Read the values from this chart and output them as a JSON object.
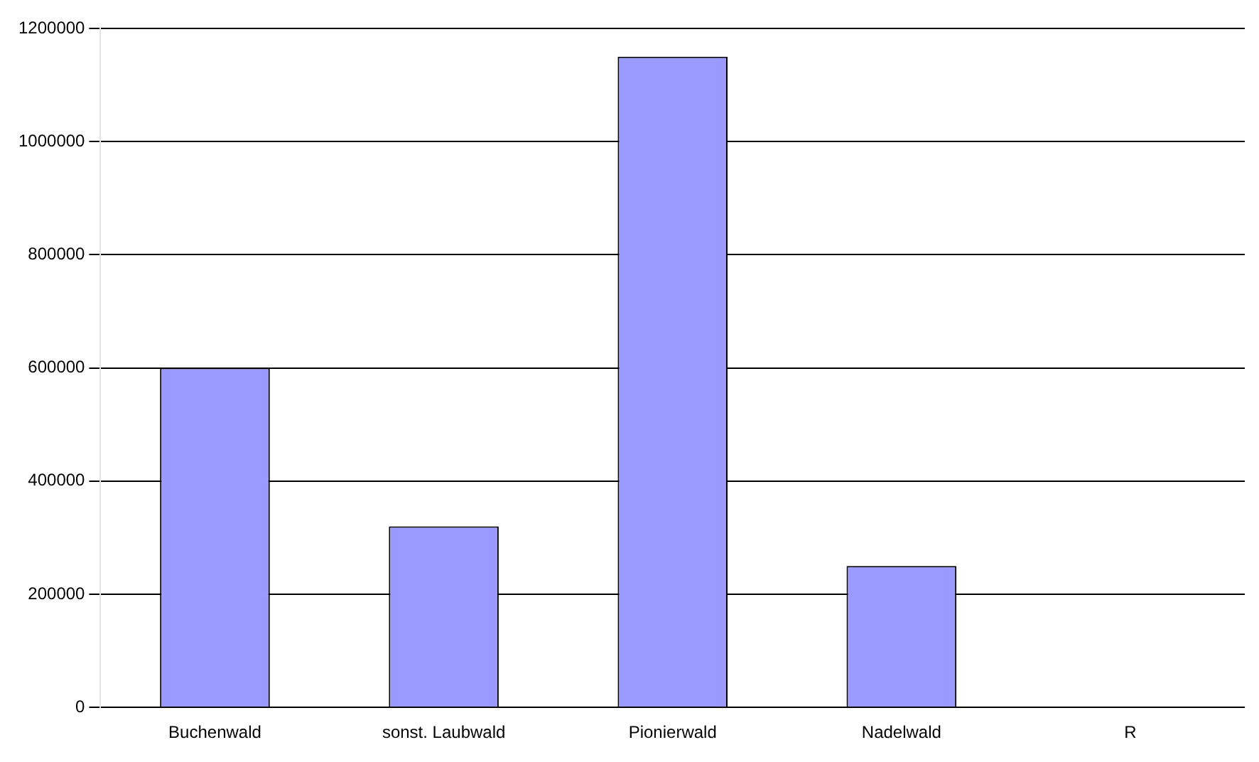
{
  "chart_data": {
    "type": "bar",
    "categories": [
      "Buchenwald",
      "sonst. Laubwald",
      "Pionierwald",
      "Nadelwald",
      "R"
    ],
    "values": [
      600000,
      320000,
      1150000,
      250000,
      null
    ],
    "color": "#9999ff",
    "ylim": [
      0,
      1200000
    ],
    "yticks": [
      0,
      200000,
      400000,
      600000,
      800000,
      1000000,
      1200000
    ],
    "grid": "y"
  }
}
